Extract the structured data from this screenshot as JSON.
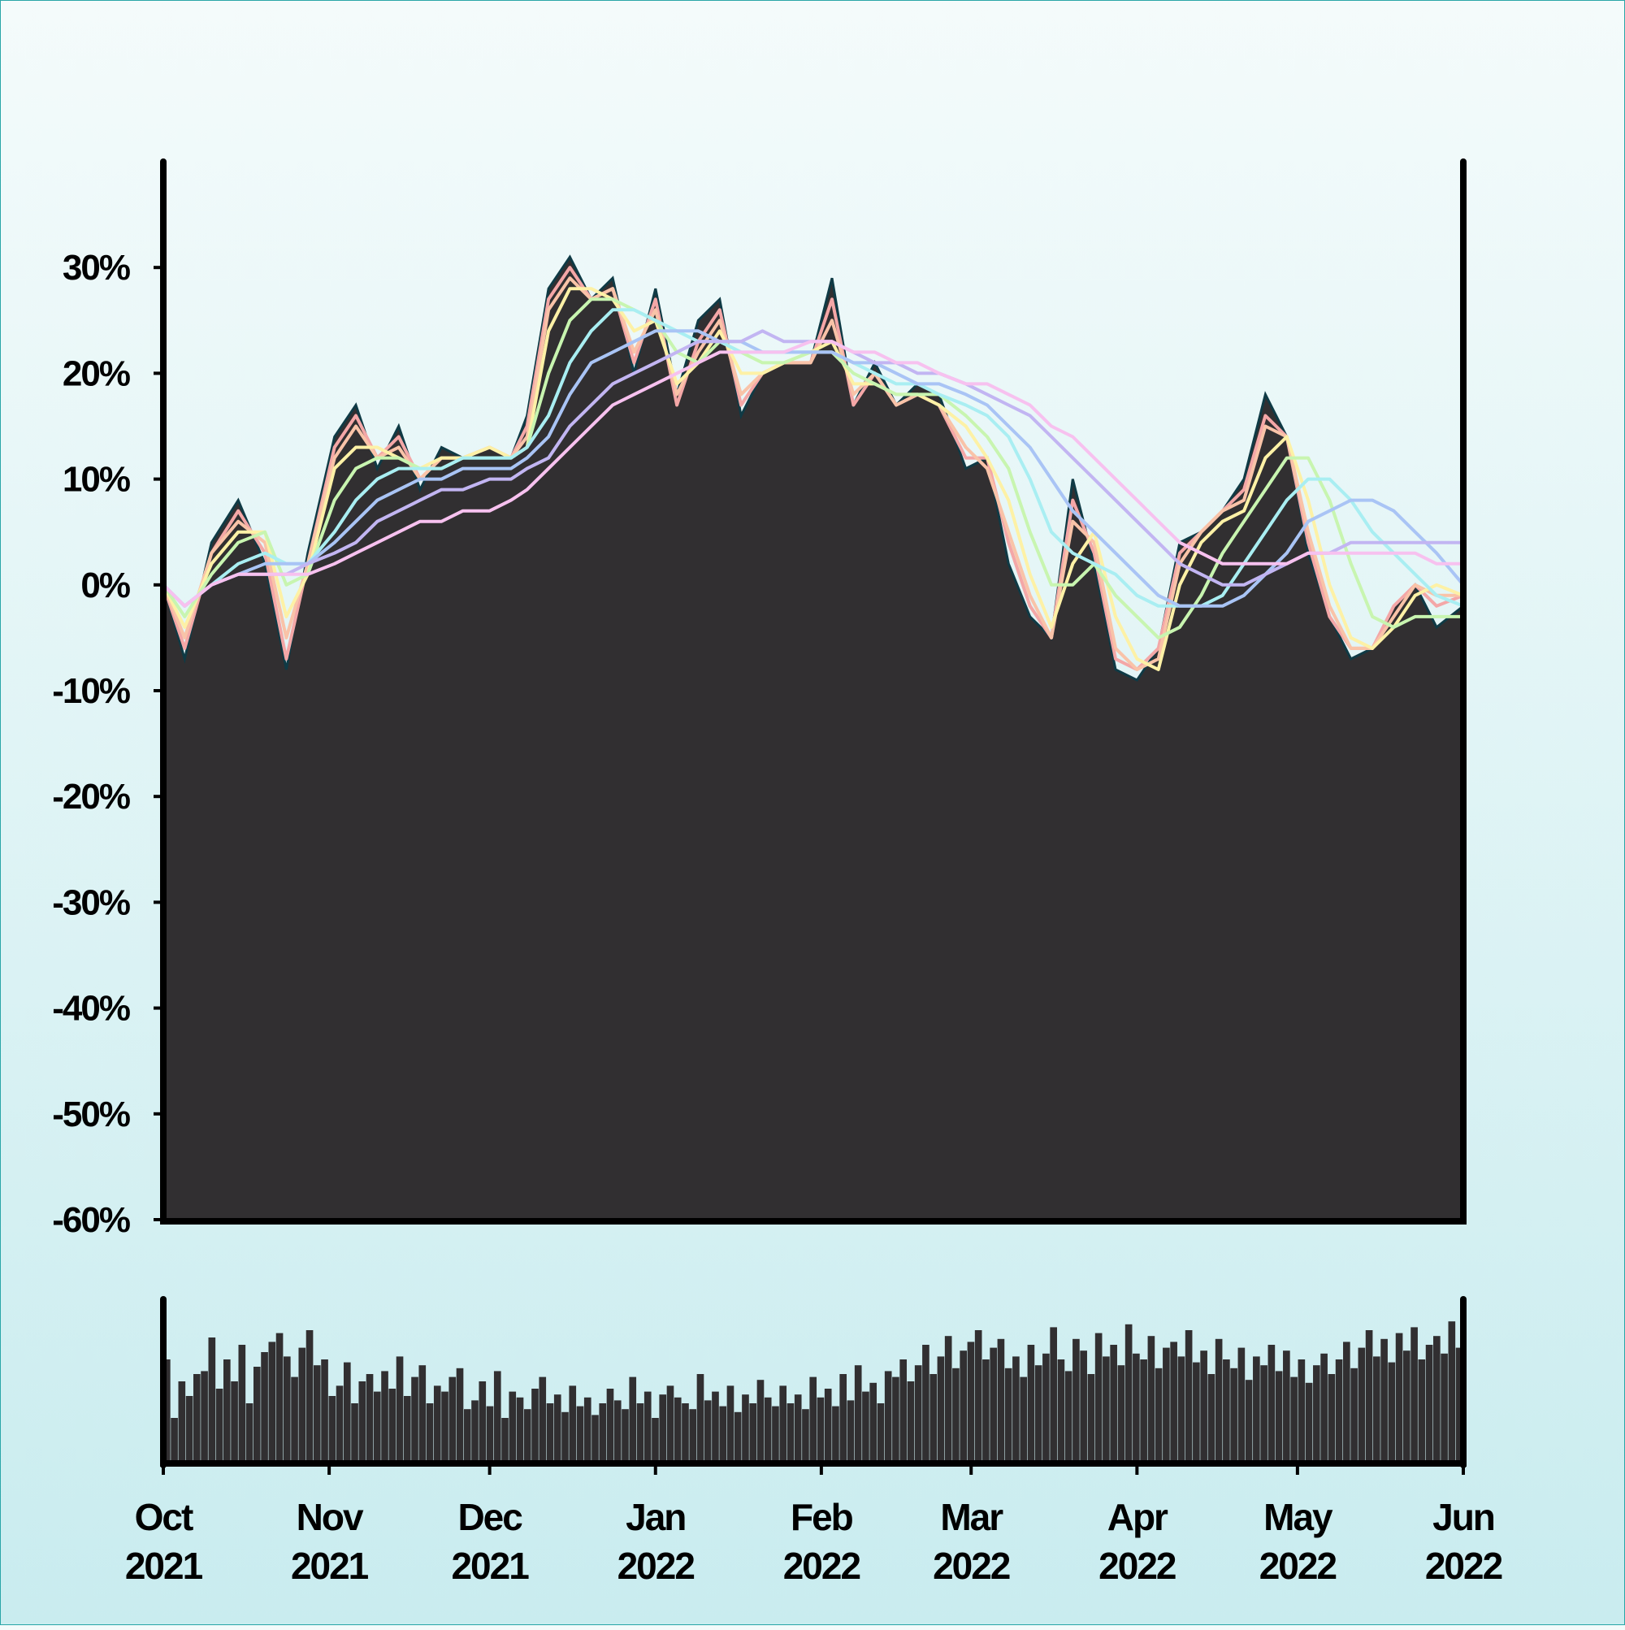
{
  "chart_data": [
    {
      "type": "area",
      "x_range": [
        "2021-10-01",
        "2022-06-01"
      ],
      "ylim": [
        -60,
        40
      ],
      "yticks": [
        30,
        20,
        10,
        0,
        -10,
        -20,
        -30,
        -40,
        -50,
        -60
      ],
      "ytick_labels": [
        "30%",
        "20%",
        "10%",
        "0%",
        "-10%",
        "-20%",
        "-30%",
        "-40%",
        "-50%",
        "-60%"
      ],
      "grid": false,
      "colors": {
        "area_fill": "#312f31",
        "area_edge": "#0f3a45",
        "moving_averages": [
          "#f4a7a7",
          "#f9c3a8",
          "#fdf1a6",
          "#c8f5b0",
          "#a9eef2",
          "#a9c4f5",
          "#c2b5f2",
          "#f7c1ef"
        ]
      },
      "x": [
        "2021-10-01",
        "2021-10-05",
        "2021-10-10",
        "2021-10-15",
        "2021-10-20",
        "2021-10-24",
        "2021-10-28",
        "2021-11-02",
        "2021-11-06",
        "2021-11-10",
        "2021-11-14",
        "2021-11-18",
        "2021-11-22",
        "2021-11-26",
        "2021-12-01",
        "2021-12-05",
        "2021-12-08",
        "2021-12-12",
        "2021-12-16",
        "2021-12-20",
        "2021-12-24",
        "2021-12-28",
        "2022-01-01",
        "2022-01-05",
        "2022-01-09",
        "2022-01-13",
        "2022-01-17",
        "2022-01-21",
        "2022-01-25",
        "2022-01-30",
        "2022-02-03",
        "2022-02-07",
        "2022-02-11",
        "2022-02-15",
        "2022-02-19",
        "2022-02-23",
        "2022-02-28",
        "2022-03-04",
        "2022-03-08",
        "2022-03-12",
        "2022-03-16",
        "2022-03-20",
        "2022-03-24",
        "2022-03-28",
        "2022-04-01",
        "2022-04-05",
        "2022-04-09",
        "2022-04-13",
        "2022-04-17",
        "2022-04-21",
        "2022-04-25",
        "2022-04-29",
        "2022-05-03",
        "2022-05-07",
        "2022-05-11",
        "2022-05-15",
        "2022-05-19",
        "2022-05-23",
        "2022-05-27",
        "2022-06-01"
      ],
      "y": [
        0,
        -7,
        4,
        8,
        2,
        -8,
        3,
        14,
        17,
        11,
        15,
        9,
        13,
        12,
        13,
        12,
        16,
        28,
        31,
        27,
        29,
        20,
        28,
        18,
        25,
        27,
        16,
        20,
        21,
        21,
        29,
        17,
        21,
        17,
        19,
        18,
        11,
        12,
        2,
        -3,
        -5,
        10,
        2,
        -8,
        -9,
        -6,
        4,
        5,
        7,
        10,
        18,
        14,
        3,
        -3,
        -7,
        -6,
        -2,
        0,
        -4,
        -2
      ],
      "series": [
        {
          "values": [
            0,
            -6,
            3,
            7,
            3,
            -7,
            2,
            13,
            16,
            12,
            14,
            10,
            12,
            12,
            13,
            12,
            15,
            27,
            30,
            27,
            28,
            21,
            27,
            17,
            23,
            26,
            17,
            20,
            21,
            21,
            27,
            17,
            20,
            17,
            18,
            17,
            12,
            12,
            4,
            -2,
            -5,
            8,
            3,
            -7,
            -8,
            -6,
            3,
            5,
            7,
            9,
            16,
            14,
            4,
            -3,
            -6,
            -6,
            -2,
            0,
            -2,
            -1
          ]
        },
        {
          "values": [
            0,
            -5,
            3,
            6,
            4,
            -5,
            2,
            12,
            15,
            12,
            13,
            10,
            12,
            12,
            13,
            12,
            14,
            26,
            29,
            27,
            28,
            22,
            26,
            18,
            22,
            25,
            18,
            20,
            21,
            21,
            25,
            18,
            20,
            17,
            18,
            17,
            13,
            11,
            5,
            -1,
            -5,
            6,
            4,
            -6,
            -8,
            -7,
            2,
            5,
            7,
            8,
            15,
            14,
            5,
            -2,
            -6,
            -6,
            -3,
            0,
            -1,
            -1
          ]
        },
        {
          "values": [
            0,
            -4,
            2,
            5,
            5,
            -3,
            1,
            11,
            13,
            13,
            12,
            11,
            12,
            12,
            13,
            12,
            13,
            24,
            28,
            28,
            27,
            24,
            25,
            19,
            21,
            24,
            20,
            20,
            21,
            22,
            23,
            19,
            19,
            18,
            18,
            17,
            15,
            12,
            8,
            1,
            -4,
            2,
            5,
            -3,
            -7,
            -8,
            0,
            4,
            6,
            7,
            12,
            14,
            8,
            0,
            -5,
            -6,
            -4,
            -1,
            0,
            -1
          ]
        },
        {
          "values": [
            0,
            -3,
            1,
            4,
            5,
            0,
            1,
            8,
            11,
            12,
            12,
            11,
            11,
            12,
            12,
            12,
            13,
            20,
            25,
            27,
            27,
            26,
            25,
            22,
            21,
            23,
            22,
            21,
            21,
            22,
            22,
            20,
            19,
            18,
            18,
            18,
            16,
            14,
            11,
            5,
            0,
            0,
            2,
            -1,
            -3,
            -5,
            -4,
            -1,
            3,
            6,
            9,
            12,
            12,
            8,
            2,
            -3,
            -4,
            -3,
            -3,
            -3
          ]
        },
        {
          "values": [
            0,
            -2,
            0,
            2,
            3,
            2,
            2,
            5,
            8,
            10,
            11,
            11,
            11,
            12,
            12,
            12,
            13,
            16,
            21,
            24,
            26,
            26,
            25,
            24,
            23,
            23,
            22,
            22,
            22,
            22,
            22,
            21,
            20,
            19,
            19,
            18,
            17,
            16,
            14,
            10,
            5,
            3,
            2,
            1,
            -1,
            -2,
            -2,
            -2,
            -1,
            2,
            5,
            8,
            10,
            10,
            8,
            5,
            3,
            1,
            -1,
            -2
          ]
        },
        {
          "values": [
            0,
            -2,
            0,
            1,
            2,
            2,
            2,
            4,
            6,
            8,
            9,
            10,
            10,
            11,
            11,
            11,
            12,
            14,
            18,
            21,
            22,
            23,
            24,
            24,
            24,
            23,
            23,
            22,
            22,
            22,
            22,
            21,
            21,
            20,
            19,
            19,
            18,
            17,
            15,
            13,
            10,
            7,
            5,
            3,
            1,
            -1,
            -2,
            -2,
            -2,
            -1,
            1,
            3,
            6,
            7,
            8,
            8,
            7,
            5,
            3,
            0
          ]
        },
        {
          "values": [
            0,
            -2,
            0,
            1,
            1,
            1,
            2,
            3,
            4,
            6,
            7,
            8,
            9,
            9,
            10,
            10,
            11,
            12,
            15,
            17,
            19,
            20,
            21,
            22,
            23,
            23,
            23,
            24,
            23,
            23,
            23,
            22,
            21,
            21,
            20,
            20,
            19,
            18,
            17,
            16,
            14,
            12,
            10,
            8,
            6,
            4,
            2,
            1,
            0,
            0,
            1,
            2,
            3,
            3,
            4,
            4,
            4,
            4,
            4,
            4
          ]
        },
        {
          "values": [
            0,
            -2,
            0,
            1,
            1,
            1,
            1,
            2,
            3,
            4,
            5,
            6,
            6,
            7,
            7,
            8,
            9,
            11,
            13,
            15,
            17,
            18,
            19,
            20,
            21,
            22,
            22,
            22,
            22,
            23,
            23,
            22,
            22,
            21,
            21,
            20,
            19,
            19,
            18,
            17,
            15,
            14,
            12,
            10,
            8,
            6,
            4,
            3,
            2,
            2,
            2,
            2,
            3,
            3,
            3,
            3,
            3,
            3,
            2,
            2
          ]
        }
      ]
    },
    {
      "type": "bar",
      "description_role": "volume",
      "ylim": [
        0,
        100
      ],
      "values": [
        70,
        30,
        55,
        45,
        60,
        62,
        85,
        50,
        70,
        55,
        80,
        40,
        65,
        75,
        82,
        88,
        72,
        58,
        78,
        90,
        66,
        70,
        45,
        52,
        68,
        40,
        55,
        60,
        48,
        62,
        50,
        72,
        45,
        58,
        66,
        40,
        52,
        48,
        58,
        64,
        36,
        42,
        55,
        38,
        62,
        30,
        48,
        44,
        36,
        50,
        58,
        40,
        46,
        34,
        52,
        38,
        44,
        32,
        40,
        50,
        42,
        36,
        58,
        40,
        48,
        30,
        46,
        52,
        44,
        40,
        36,
        60,
        42,
        48,
        38,
        52,
        34,
        46,
        40,
        56,
        44,
        38,
        52,
        40,
        46,
        36,
        58,
        44,
        50,
        38,
        60,
        42,
        66,
        48,
        54,
        40,
        62,
        58,
        70,
        55,
        66,
        80,
        60,
        72,
        86,
        64,
        76,
        82,
        90,
        70,
        78,
        84,
        64,
        72,
        58,
        80,
        66,
        74,
        92,
        70,
        62,
        84,
        76,
        60,
        88,
        72,
        80,
        66,
        94,
        74,
        70,
        86,
        64,
        78,
        82,
        72,
        90,
        68,
        76,
        60,
        84,
        70,
        64,
        78,
        56,
        72,
        66,
        80,
        62,
        76,
        58,
        70,
        54,
        66,
        74,
        60,
        70,
        82,
        64,
        78,
        90,
        72,
        84,
        68,
        88,
        76,
        92,
        70,
        80,
        86,
        74,
        96,
        78
      ]
    }
  ],
  "x_axis": {
    "ticks": [
      {
        "month": "Oct",
        "year": "2021"
      },
      {
        "month": "Nov",
        "year": "2021"
      },
      {
        "month": "Dec",
        "year": "2021"
      },
      {
        "month": "Jan",
        "year": "2022"
      },
      {
        "month": "Feb",
        "year": "2022"
      },
      {
        "month": "Mar",
        "year": "2022"
      },
      {
        "month": "Apr",
        "year": "2022"
      },
      {
        "month": "May",
        "year": "2022"
      },
      {
        "month": "Jun",
        "year": "2022"
      }
    ]
  }
}
